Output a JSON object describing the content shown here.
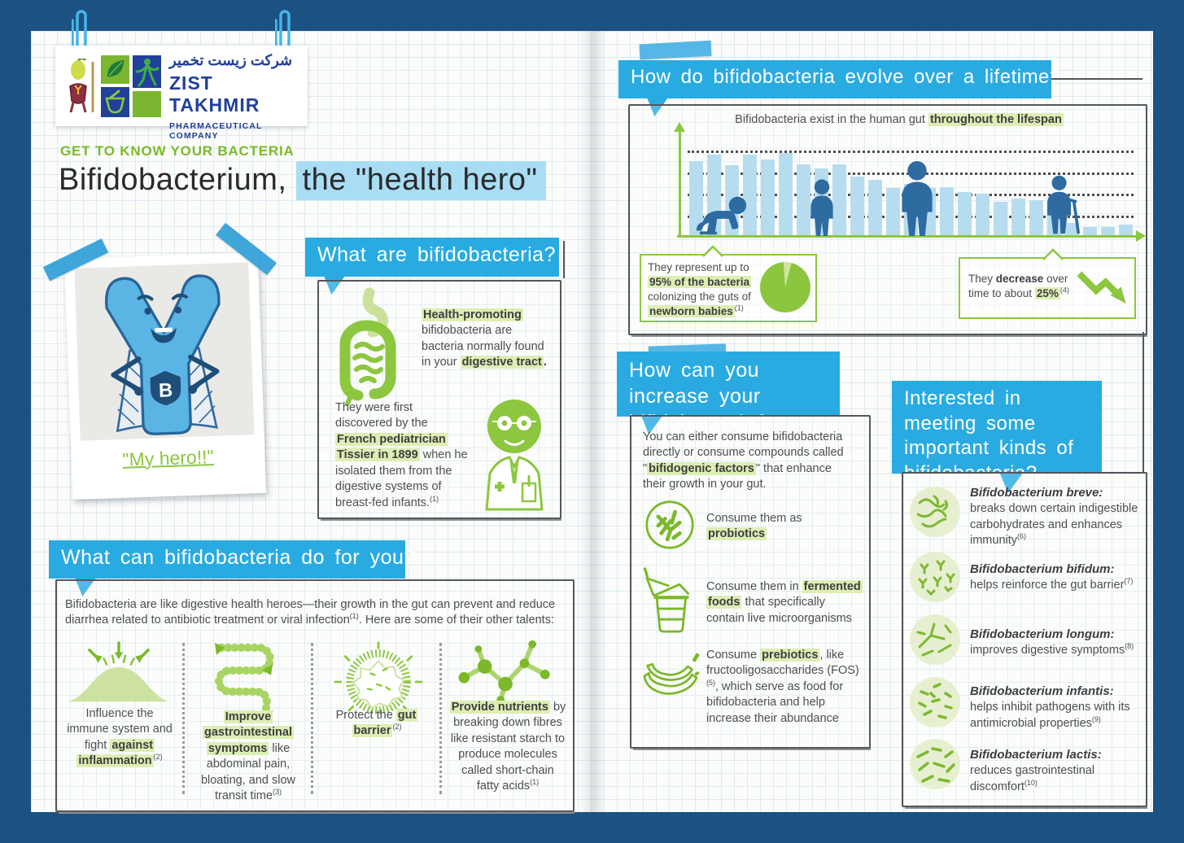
{
  "brand": {
    "persian": "شرکت زیست تخمیر",
    "name": "ZIST TAKHMIR",
    "tagline": "PHARMACEUTICAL COMPANY",
    "logo_colors": {
      "blue": "#21409a",
      "green": "#7ab62f"
    }
  },
  "page": {
    "kicker": "GET TO KNOW YOUR BACTERIA",
    "title_plain": "Bifidobacterium,",
    "title_highlight": "the \"health hero\"",
    "title_highlight_color": "#a9ddf3",
    "polaroid_caption": "\"My hero!!\"",
    "badge_letter": "B",
    "accent_blue": "#29abe2",
    "accent_green": "#8dc63f",
    "highlight_green": "#ddeeb4",
    "decor_icons": [
      "paperclip-icon",
      "tape-strip",
      "bacteria-mascot",
      "leaf-icon",
      "mortar-pestle-icon",
      "jumping-figure-icon"
    ]
  },
  "sections": {
    "what": {
      "heading": "What are bifidobacteria?",
      "icon1": "intestine-icon",
      "icon2": "doctor-icon",
      "p1": [
        {
          "t": "Health-promoting",
          "s": "b hl"
        },
        {
          "t": " bifidobacteria are bacteria normally found in your ",
          "s": ""
        },
        {
          "t": "digestive tract",
          "s": "b hl"
        },
        {
          "t": ".",
          "s": "b"
        }
      ],
      "p2": [
        {
          "t": "They were first discovered by the ",
          "s": ""
        },
        {
          "t": "French pediatrician Tissier in 1899",
          "s": "b hl"
        },
        {
          "t": " when he isolated them from the digestive systems of breast-fed infants.",
          "s": ""
        },
        {
          "t": "(1)",
          "s": "sup"
        }
      ]
    },
    "talents": {
      "heading": "What can bifidobacteria do for you?",
      "intro": [
        {
          "t": "Bifidobacteria are like digestive health heroes—their growth in the gut can prevent and reduce diarrhea related to antibiotic treatment or viral infection",
          "s": ""
        },
        {
          "t": "(1)",
          "s": "sup"
        },
        {
          "t": ". Here are some of their other talents:",
          "s": ""
        }
      ],
      "items": [
        {
          "icon": "immune-mound-icon",
          "text": [
            {
              "t": "Influence the immune system and fight ",
              "s": ""
            },
            {
              "t": "against inflammation",
              "s": "b hl"
            },
            {
              "t": "(2)",
              "s": "sup"
            }
          ]
        },
        {
          "icon": "intestine-transit-icon",
          "text": [
            {
              "t": "Improve gastrointestinal symptoms",
              "s": "b hl"
            },
            {
              "t": " like abdominal pain, bloating, and slow transit time",
              "s": ""
            },
            {
              "t": "(3)",
              "s": "sup"
            }
          ]
        },
        {
          "icon": "gut-barrier-cell-icon",
          "text": [
            {
              "t": "Protect the ",
              "s": ""
            },
            {
              "t": "gut barrier",
              "s": "b hl"
            },
            {
              "t": "(2)",
              "s": "sup"
            }
          ]
        },
        {
          "icon": "molecule-icon",
          "text": [
            {
              "t": "Provide nutrients",
              "s": "b hl"
            },
            {
              "t": " by breaking down fibres like resistant starch to produce molecules called short-chain fatty acids",
              "s": ""
            },
            {
              "t": "(1)",
              "s": "sup"
            }
          ]
        }
      ]
    },
    "evolve": {
      "heading": "How do bifidobacteria evolve over a lifetime?",
      "caption": [
        {
          "t": "Bifidobacteria exist in the human gut ",
          "s": ""
        },
        {
          "t": "throughout the lifespan",
          "s": "b hl"
        }
      ],
      "stage_icons": [
        "crawling-baby-icon",
        "child-icon",
        "adult-icon",
        "elderly-icon"
      ],
      "callout_left": [
        {
          "t": "They represent up to ",
          "s": ""
        },
        {
          "t": "95% of the bacteria",
          "s": "b hl"
        },
        {
          "t": " colonizing the guts of ",
          "s": ""
        },
        {
          "t": "newborn babies",
          "s": "b hl"
        },
        {
          "t": "(1)",
          "s": "sup"
        }
      ],
      "callout_right": [
        {
          "t": "They ",
          "s": ""
        },
        {
          "t": "decrease",
          "s": "b"
        },
        {
          "t": " over time to about ",
          "s": ""
        },
        {
          "t": "25%",
          "s": "b hl"
        },
        {
          "t": "(4)",
          "s": "sup"
        }
      ]
    },
    "increase": {
      "heading": "How can you increase your bifidobacteria?",
      "intro": [
        {
          "t": "You can either consume bifidobacteria directly or consume compounds called \"",
          "s": ""
        },
        {
          "t": "bifidogenic factors",
          "s": "b hl"
        },
        {
          "t": "\" that enhance their growth in your gut.",
          "s": ""
        }
      ],
      "items": [
        {
          "icon": "probiotics-icon",
          "text": [
            {
              "t": "Consume them as ",
              "s": ""
            },
            {
              "t": "probiotics",
              "s": "b hl"
            }
          ]
        },
        {
          "icon": "yogurt-icon",
          "text": [
            {
              "t": "Consume them in ",
              "s": ""
            },
            {
              "t": "fermented foods",
              "s": "b hl"
            },
            {
              "t": " that specifically contain live microorganisms",
              "s": ""
            }
          ]
        },
        {
          "icon": "banana-icon",
          "text": [
            {
              "t": "Consume ",
              "s": ""
            },
            {
              "t": "prebiotics",
              "s": "b hl"
            },
            {
              "t": ", like fructooligosaccharides (FOS)",
              "s": ""
            },
            {
              "t": "(5)",
              "s": "sup"
            },
            {
              "t": ", which serve as food for bifidobacteria and help increase their abundance",
              "s": ""
            }
          ]
        }
      ]
    },
    "kinds": {
      "heading": "Interested in meeting some important kinds of bifidobacteria?",
      "items": [
        {
          "icon": "bacteria-breve-icon",
          "name": "Bifidobacterium breve:",
          "desc": [
            {
              "t": "breaks down certain indigestible carbohydrates and enhances immunity",
              "s": ""
            },
            {
              "t": "(6)",
              "s": "sup"
            }
          ]
        },
        {
          "icon": "bacteria-bifidum-icon",
          "name": "Bifidobacterium bifidum:",
          "desc": [
            {
              "t": "helps reinforce the gut barrier",
              "s": ""
            },
            {
              "t": "(7)",
              "s": "sup"
            }
          ]
        },
        {
          "icon": "bacteria-longum-icon",
          "name": "Bifidobacterium longum:",
          "desc": [
            {
              "t": "improves digestive symptoms",
              "s": ""
            },
            {
              "t": "(8)",
              "s": "sup"
            }
          ]
        },
        {
          "icon": "bacteria-infantis-icon",
          "name": "Bifidobacterium infantis:",
          "desc": [
            {
              "t": "helps inhibit pathogens with its antimicrobial properties",
              "s": ""
            },
            {
              "t": "(9)",
              "s": "sup"
            }
          ]
        },
        {
          "icon": "bacteria-lactis-icon",
          "name": "Bifidobacterium lactis:",
          "desc": [
            {
              "t": "reduces gastrointestinal discomfort",
              "s": ""
            },
            {
              "t": "(10)",
              "s": "sup"
            }
          ]
        }
      ]
    }
  },
  "chart_data": [
    {
      "type": "bar",
      "title": "Bifidobacteria exist in the human gut throughout the lifespan",
      "x_stages": [
        "newborn baby",
        "child",
        "adult",
        "elderly"
      ],
      "values": [
        88,
        95,
        83,
        95,
        90,
        97,
        84,
        79,
        84,
        70,
        66,
        57,
        61,
        57,
        58,
        52,
        50,
        41,
        44,
        42,
        36,
        16,
        11,
        11,
        14
      ],
      "ylim": [
        0,
        100
      ],
      "gridlines": [
        25,
        50,
        75,
        100
      ],
      "grid_style": "dotted",
      "bar_color": "#b7dcf0",
      "axis_color": "#8dc63f",
      "annotations": [
        "starts near 95% in newborns",
        "declines to about 25% in old age"
      ]
    },
    {
      "type": "pie",
      "labels": [
        "bifidobacteria share",
        "other bacteria"
      ],
      "values": [
        95,
        5
      ],
      "colors": [
        "#8cc63f",
        "#cfe5a0"
      ]
    }
  ]
}
